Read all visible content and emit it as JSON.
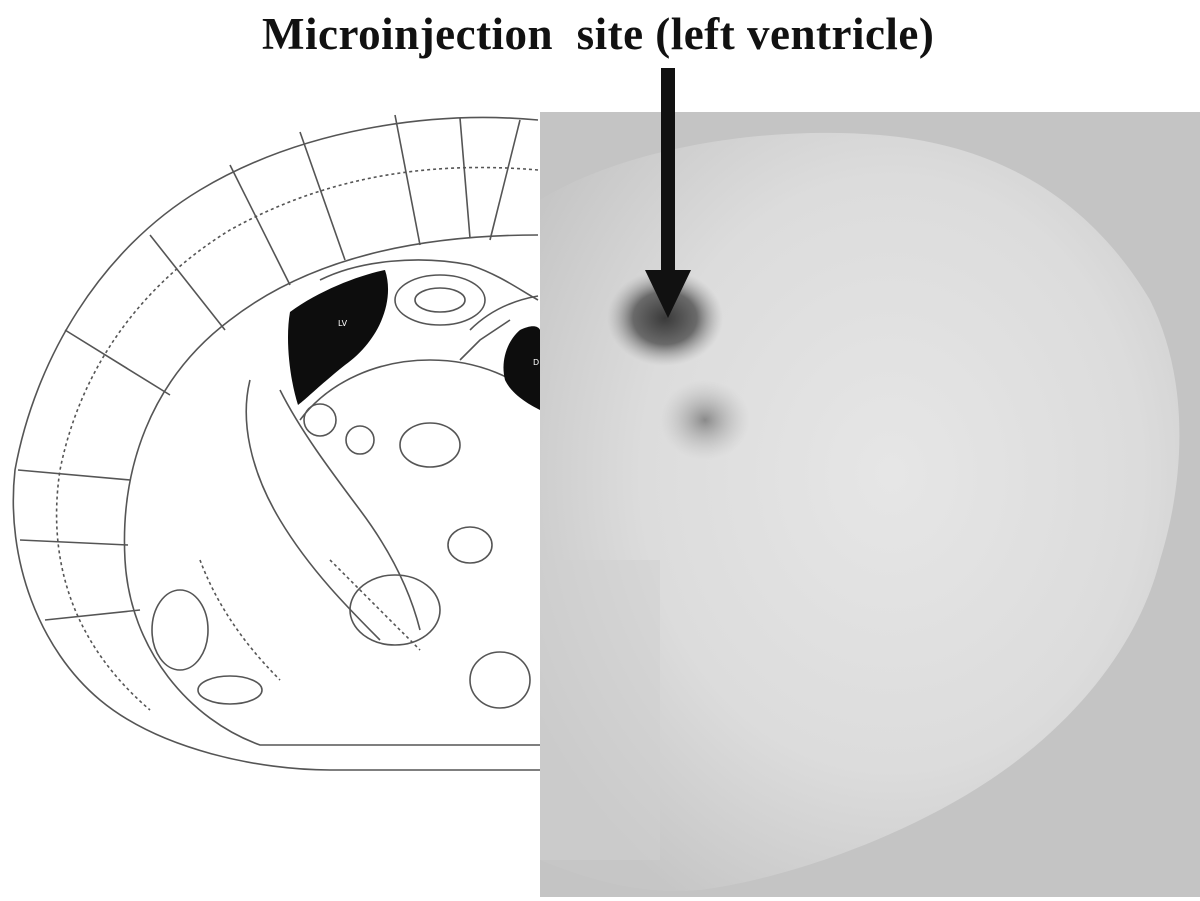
{
  "figure": {
    "caption": "Microinjection  site (left ventricle)",
    "atlas_label_left": "LV",
    "atlas_label_right": "D"
  }
}
